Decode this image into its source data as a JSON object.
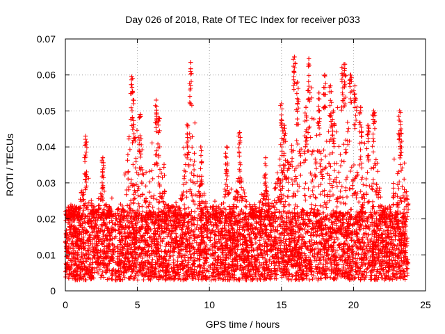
{
  "chart_data": {
    "type": "scatter",
    "title": "Day 026 of 2018, Rate Of TEC Index for receiver p033",
    "xlabel": "GPS time / hours",
    "ylabel": "ROTI / TECUs",
    "xlim": [
      0,
      25
    ],
    "ylim": [
      0,
      0.07
    ],
    "xticks": [
      0,
      5,
      10,
      15,
      20,
      25
    ],
    "yticks": [
      0,
      0.01,
      0.02,
      0.03,
      0.04,
      0.05,
      0.06,
      0.07
    ],
    "xtick_labels": [
      "0",
      "5",
      "10",
      "15",
      "20",
      "25"
    ],
    "ytick_labels": [
      "0",
      "0.01",
      "0.02",
      "0.03",
      "0.04",
      "0.05",
      "0.06",
      "0.07"
    ],
    "grid": true,
    "marker": "+",
    "color": "#ff0000",
    "series": [
      {
        "name": "ROTI",
        "x_range": [
          0,
          23.8
        ],
        "typical_range": [
          0.003,
          0.02
        ],
        "peaks": [
          {
            "x": 1.4,
            "y": 0.043
          },
          {
            "x": 2.6,
            "y": 0.037
          },
          {
            "x": 4.6,
            "y": 0.0595
          },
          {
            "x": 4.7,
            "y": 0.053
          },
          {
            "x": 5.2,
            "y": 0.049
          },
          {
            "x": 6.3,
            "y": 0.053
          },
          {
            "x": 6.5,
            "y": 0.048
          },
          {
            "x": 8.5,
            "y": 0.046
          },
          {
            "x": 8.7,
            "y": 0.0635
          },
          {
            "x": 9.4,
            "y": 0.04
          },
          {
            "x": 11.2,
            "y": 0.04
          },
          {
            "x": 12.1,
            "y": 0.044
          },
          {
            "x": 13.9,
            "y": 0.037
          },
          {
            "x": 15.0,
            "y": 0.052
          },
          {
            "x": 15.2,
            "y": 0.046
          },
          {
            "x": 15.9,
            "y": 0.065
          },
          {
            "x": 16.1,
            "y": 0.058
          },
          {
            "x": 16.7,
            "y": 0.051
          },
          {
            "x": 16.9,
            "y": 0.0645
          },
          {
            "x": 17.6,
            "y": 0.055
          },
          {
            "x": 18.0,
            "y": 0.06
          },
          {
            "x": 18.4,
            "y": 0.057
          },
          {
            "x": 18.6,
            "y": 0.05
          },
          {
            "x": 19.2,
            "y": 0.062
          },
          {
            "x": 19.4,
            "y": 0.063
          },
          {
            "x": 19.8,
            "y": 0.06
          },
          {
            "x": 20.1,
            "y": 0.057
          },
          {
            "x": 20.5,
            "y": 0.051
          },
          {
            "x": 21.0,
            "y": 0.046
          },
          {
            "x": 21.4,
            "y": 0.05
          },
          {
            "x": 23.2,
            "y": 0.05
          },
          {
            "x": 23.3,
            "y": 0.045
          }
        ]
      }
    ]
  }
}
